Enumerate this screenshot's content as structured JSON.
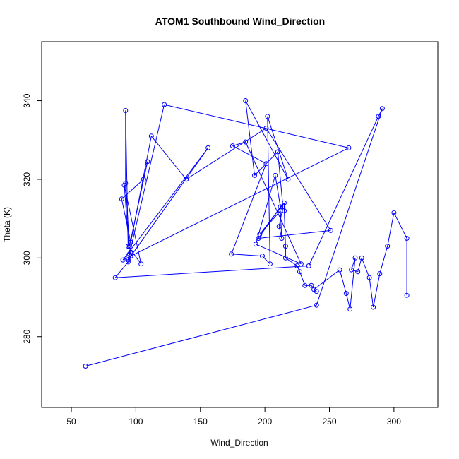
{
  "chart_data": {
    "type": "scatter",
    "title": "ATOM1 Southbound Wind_Direction",
    "xlabel": "Wind_Direction",
    "ylabel": "Theta (K)",
    "xlim": [
      27,
      334
    ],
    "ylim": [
      262,
      355
    ],
    "xticks": [
      50,
      100,
      150,
      200,
      250,
      300
    ],
    "yticks": [
      280,
      300,
      320,
      340
    ],
    "grid": false,
    "legend": "none",
    "series_color": "#0000ff",
    "marker": "open-circle",
    "connected": true,
    "points": [
      [
        61,
        272.5
      ],
      [
        240,
        288
      ],
      [
        291,
        338
      ],
      [
        288,
        336
      ],
      [
        234,
        298
      ],
      [
        84,
        295
      ],
      [
        94,
        299
      ],
      [
        96,
        300.5
      ],
      [
        96,
        301.5
      ],
      [
        94,
        300
      ],
      [
        94,
        299.5
      ],
      [
        156,
        328
      ],
      [
        90,
        299.5
      ],
      [
        265,
        328
      ],
      [
        122,
        339
      ],
      [
        95,
        301
      ],
      [
        91,
        318.5
      ],
      [
        104,
        298.5
      ],
      [
        94,
        303
      ],
      [
        92,
        337.5
      ],
      [
        92,
        319
      ],
      [
        95,
        303
      ],
      [
        109,
        324.5
      ],
      [
        106,
        320
      ],
      [
        89,
        315
      ],
      [
        96,
        304
      ],
      [
        112,
        331
      ],
      [
        139,
        320
      ],
      [
        201,
        333
      ],
      [
        251,
        307
      ],
      [
        195,
        305
      ],
      [
        212,
        313
      ],
      [
        208,
        321
      ],
      [
        193,
        303.5
      ],
      [
        228,
        298.5
      ],
      [
        185,
        329.5
      ],
      [
        175,
        328.5
      ],
      [
        201,
        324
      ],
      [
        174,
        301
      ],
      [
        198,
        300.5
      ],
      [
        204,
        298.5
      ],
      [
        202,
        336
      ],
      [
        218,
        320
      ],
      [
        185,
        340
      ],
      [
        192,
        321
      ],
      [
        210,
        327
      ],
      [
        214,
        313
      ],
      [
        211,
        308
      ],
      [
        213,
        305
      ],
      [
        212,
        312
      ],
      [
        196,
        306
      ],
      [
        215,
        314
      ],
      [
        215,
        312
      ],
      [
        216,
        303
      ],
      [
        216,
        300
      ],
      [
        225,
        298
      ],
      [
        227,
        296.5
      ],
      [
        231,
        293
      ],
      [
        236,
        293
      ],
      [
        240,
        291.5
      ],
      [
        238,
        292
      ],
      [
        258,
        297
      ],
      [
        263,
        291
      ],
      [
        266,
        287
      ],
      [
        270,
        300
      ],
      [
        267,
        297
      ],
      [
        272,
        296.5
      ],
      [
        275,
        300
      ],
      [
        281,
        295
      ],
      [
        284,
        287.5
      ],
      [
        289,
        296
      ],
      [
        295,
        303
      ],
      [
        300,
        311.5
      ],
      [
        310,
        305
      ],
      [
        310,
        290.5
      ]
    ]
  }
}
